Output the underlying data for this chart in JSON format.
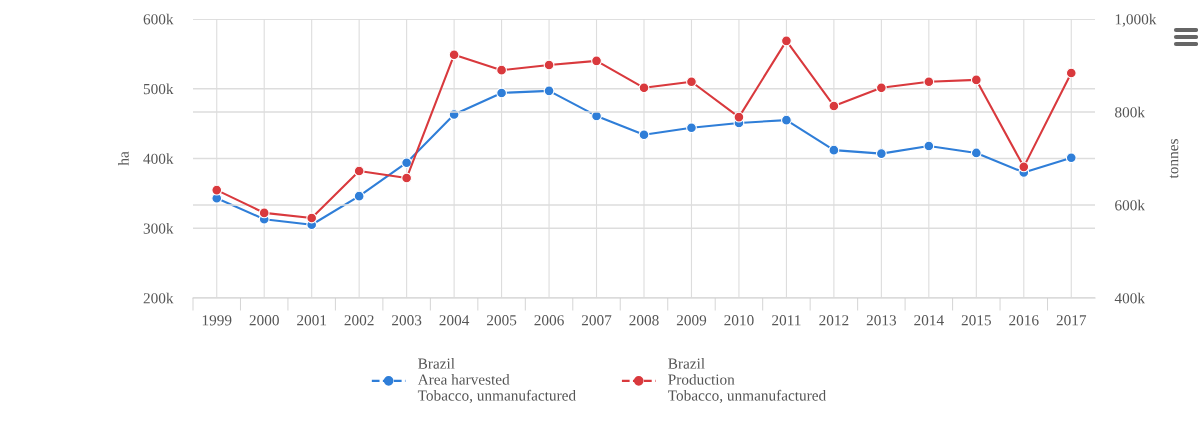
{
  "chart_data": {
    "type": "line",
    "ylabel": "ha",
    "y2label": "tonnes",
    "categories": [
      "1999",
      "2000",
      "2001",
      "2002",
      "2003",
      "2004",
      "2005",
      "2006",
      "2007",
      "2008",
      "2009",
      "2010",
      "2011",
      "2012",
      "2013",
      "2014",
      "2015",
      "2016",
      "2017"
    ],
    "series": [
      {
        "name": "Brazil\nArea harvested\nTobacco, unmanufactured",
        "color": "#2f7ed8",
        "values": [
          343000,
          313000,
          305000,
          346000,
          394000,
          463000,
          494000,
          497000,
          461000,
          434000,
          444000,
          451000,
          455000,
          412000,
          407000,
          418000,
          408000,
          380000,
          401000
        ]
      },
      {
        "name": "Brazil\nProduction\nTobacco, unmanufactured",
        "color": "#d9393d",
        "axis": "y2",
        "values": [
          632000,
          583000,
          572000,
          673000,
          658000,
          923000,
          890000,
          901000,
          910000,
          852000,
          865000,
          789000,
          953000,
          813000,
          852000,
          865000,
          869000,
          682000,
          884000
        ]
      }
    ],
    "ylim": [
      200000,
      600000
    ],
    "yticks": [
      {
        "value": 200000,
        "label": "200k"
      },
      {
        "value": 300000,
        "label": "300k"
      },
      {
        "value": 400000,
        "label": "400k"
      },
      {
        "value": 500000,
        "label": "500k"
      },
      {
        "value": 600000,
        "label": "600k"
      }
    ],
    "y2lim": [
      400000,
      1000000
    ],
    "y2ticks": [
      {
        "value": 400000,
        "label": "400k"
      },
      {
        "value": 600000,
        "label": "600k"
      },
      {
        "value": 800000,
        "label": "800k"
      },
      {
        "value": 1000000,
        "label": "1,000k"
      }
    ],
    "grid": true,
    "legend": "bottom",
    "marker": "circle",
    "line_style": "solid"
  }
}
